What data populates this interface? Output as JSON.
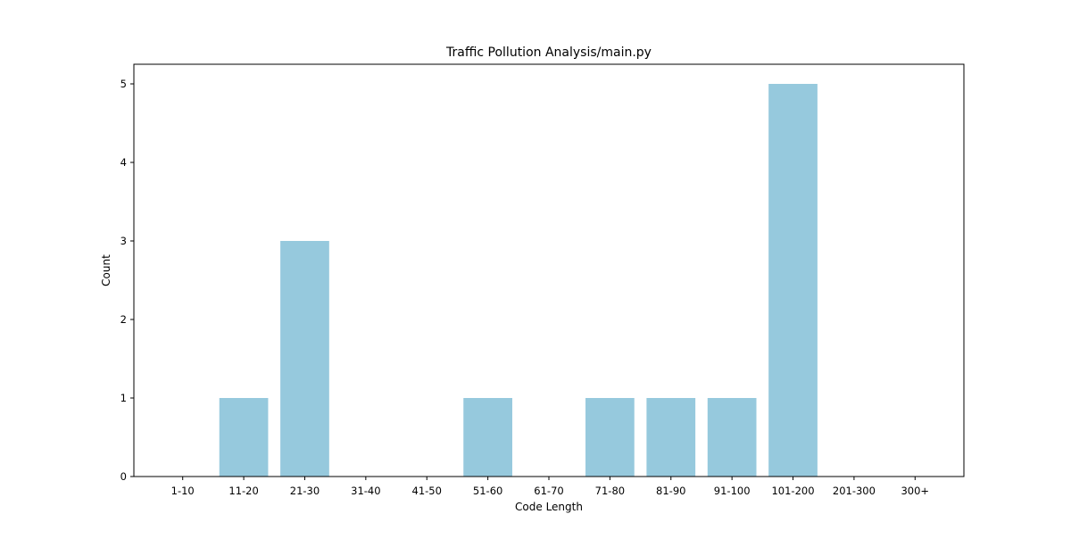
{
  "chart_data": {
    "type": "bar",
    "title": "Traffic Pollution Analysis/main.py",
    "xlabel": "Code Length",
    "ylabel": "Count",
    "categories": [
      "1-10",
      "11-20",
      "21-30",
      "31-40",
      "41-50",
      "51-60",
      "61-70",
      "71-80",
      "81-90",
      "91-100",
      "101-200",
      "201-300",
      "300+"
    ],
    "values": [
      0,
      1,
      3,
      0,
      0,
      1,
      0,
      1,
      1,
      1,
      5,
      0,
      0
    ],
    "ylim": [
      0,
      5.25
    ],
    "yticks": [
      0,
      1,
      2,
      3,
      4,
      5
    ],
    "grid": false,
    "legend": "none",
    "bar_color": "#96c9dd"
  }
}
